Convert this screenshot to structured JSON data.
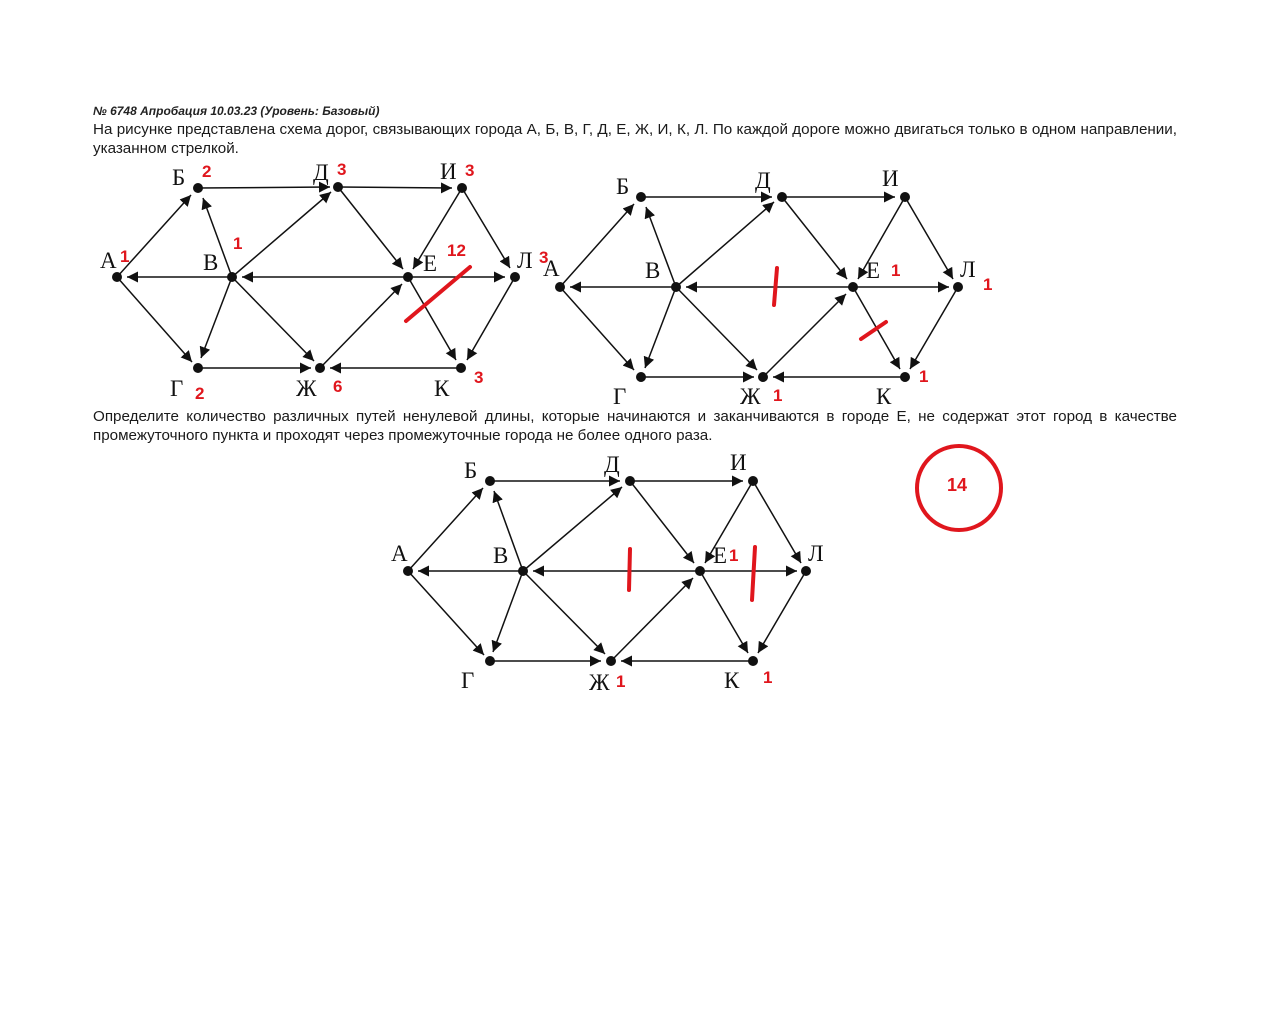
{
  "task": {
    "header": "№ 6748 Апробация 10.03.23 (Уровень: Базовый)",
    "statement": "На рисунке представлена схема дорог, связывающих города А, Б, В, Г, Д, Е, Ж, И, К, Л. По каждой дороге можно двигаться только в одном направлении, указанном стрелкой.",
    "question": "Определите количество различных путей ненулевой длины, которые начинаются и заканчиваются в городе Е, не содержат этот город в качестве промежуточного пункта и проходят через промежуточные города не более одного раза."
  },
  "graphs": [
    {
      "cities": {
        "A": "А",
        "B": "Б",
        "V": "В",
        "G": "Г",
        "D": "Д",
        "E": "Е",
        "Zh": "Ж",
        "I": "И",
        "K": "К",
        "L": "Л"
      },
      "annotations": {
        "A": "1",
        "B": "2",
        "V": "1",
        "G": "2",
        "D": "3",
        "E": "12",
        "Zh": "6",
        "I": "3",
        "K": "3",
        "L": "3"
      }
    },
    {
      "cities": {
        "A": "А",
        "B": "Б",
        "V": "В",
        "G": "Г",
        "D": "Д",
        "E": "Е",
        "Zh": "Ж",
        "I": "И",
        "K": "К",
        "L": "Л"
      },
      "annotations": {
        "E": "1",
        "L": "1",
        "Zh": "1",
        "K": "1"
      }
    },
    {
      "cities": {
        "A": "А",
        "B": "Б",
        "V": "В",
        "G": "Г",
        "D": "Д",
        "E": "Е",
        "Zh": "Ж",
        "I": "И",
        "K": "К",
        "L": "Л"
      },
      "annotations": {
        "E": "1",
        "Zh": "1",
        "K": "1"
      }
    }
  ],
  "answer": "14",
  "colors": {
    "ink": "#111111",
    "annotation": "#e0161d"
  }
}
